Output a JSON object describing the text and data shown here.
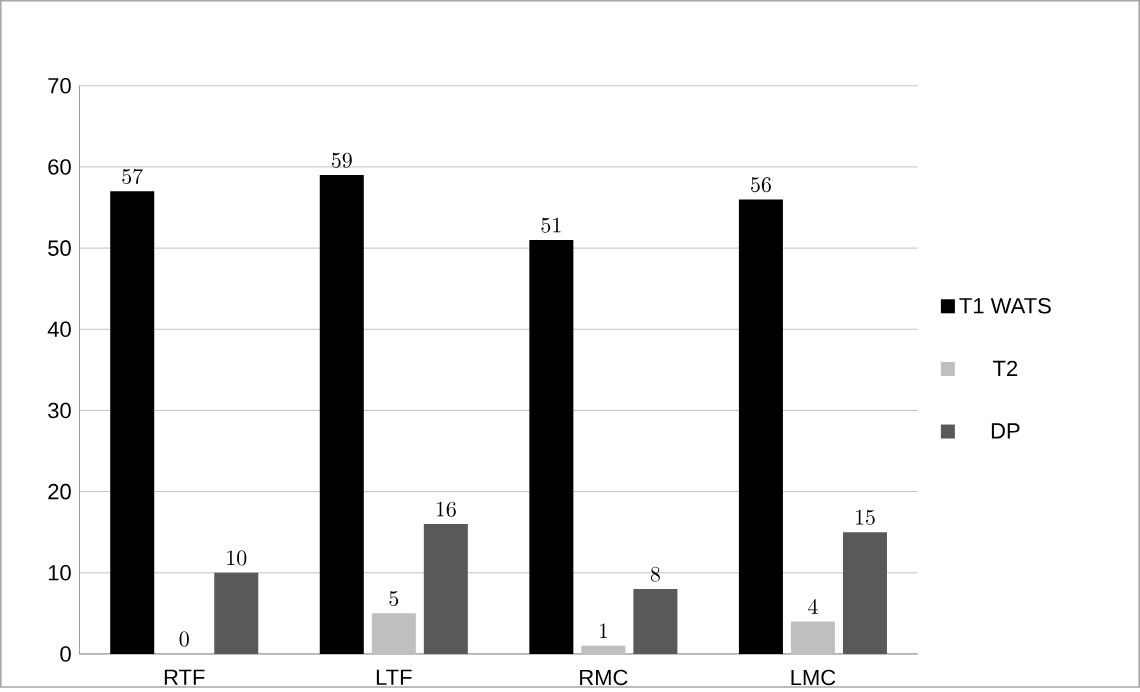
{
  "chart_data": {
    "type": "bar",
    "categories": [
      "RTF",
      "LTF",
      "RMC",
      "LMC"
    ],
    "series": [
      {
        "name": "T1 WATS",
        "color": "#000000",
        "values": [
          57,
          59,
          51,
          56
        ]
      },
      {
        "name": "T2",
        "color": "#bfbfbf",
        "values": [
          0,
          5,
          1,
          4
        ]
      },
      {
        "name": "DP",
        "color": "#595959",
        "values": [
          10,
          16,
          8,
          15
        ]
      }
    ],
    "ylim": [
      0,
      70
    ],
    "yticks": [
      0,
      10,
      20,
      30,
      40,
      50,
      60,
      70
    ],
    "grid": "y",
    "legend": "right",
    "data_labels": true
  }
}
